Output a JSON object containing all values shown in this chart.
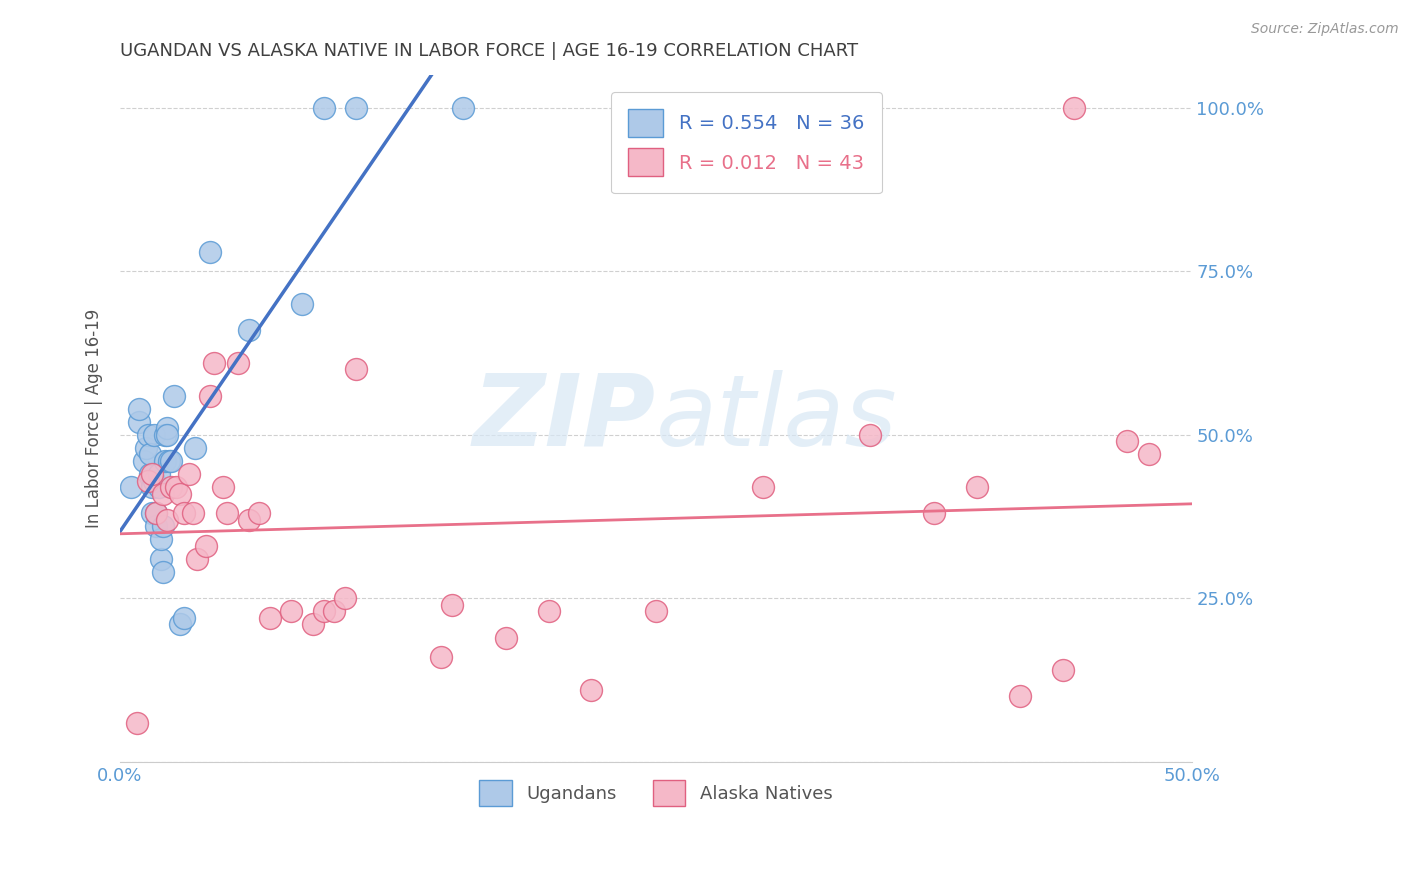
{
  "title": "UGANDAN VS ALASKA NATIVE IN LABOR FORCE | AGE 16-19 CORRELATION CHART",
  "source": "Source: ZipAtlas.com",
  "ylabel": "In Labor Force | Age 16-19",
  "xmin": 0.0,
  "xmax": 0.5,
  "ymin": 0.0,
  "ymax": 1.05,
  "yticks": [
    0.0,
    0.25,
    0.5,
    0.75,
    1.0
  ],
  "ytick_labels": [
    "",
    "25.0%",
    "50.0%",
    "75.0%",
    "100.0%"
  ],
  "xticks": [
    0.0,
    0.1,
    0.2,
    0.3,
    0.4,
    0.5
  ],
  "xtick_labels": [
    "0.0%",
    "",
    "",
    "",
    "",
    "50.0%"
  ],
  "legend_label1": "Ugandans",
  "legend_label2": "Alaska Natives",
  "watermark_zip": "ZIP",
  "watermark_atlas": "atlas",
  "blue_fill": "#aec9e8",
  "blue_edge": "#5b9bd5",
  "pink_fill": "#f5b8c8",
  "pink_edge": "#e06080",
  "blue_line": "#4472c4",
  "pink_line": "#e8708a",
  "axis_tick_color": "#5b9bd5",
  "title_color": "#404040",
  "grid_color": "#d0d0d0",
  "bg_color": "#ffffff",
  "ugandan_x": [
    0.005,
    0.009,
    0.009,
    0.011,
    0.012,
    0.013,
    0.014,
    0.014,
    0.015,
    0.015,
    0.016,
    0.016,
    0.017,
    0.017,
    0.018,
    0.018,
    0.019,
    0.019,
    0.02,
    0.02,
    0.021,
    0.021,
    0.022,
    0.022,
    0.023,
    0.024,
    0.025,
    0.028,
    0.03,
    0.035,
    0.042,
    0.06,
    0.085,
    0.095,
    0.11,
    0.16
  ],
  "ugandan_y": [
    0.42,
    0.52,
    0.54,
    0.46,
    0.48,
    0.5,
    0.44,
    0.47,
    0.38,
    0.42,
    0.43,
    0.5,
    0.36,
    0.38,
    0.42,
    0.44,
    0.31,
    0.34,
    0.29,
    0.36,
    0.46,
    0.5,
    0.51,
    0.5,
    0.46,
    0.46,
    0.56,
    0.21,
    0.22,
    0.48,
    0.78,
    0.66,
    0.7,
    1.0,
    1.0,
    1.0
  ],
  "alaska_x": [
    0.008,
    0.013,
    0.015,
    0.017,
    0.02,
    0.022,
    0.024,
    0.026,
    0.028,
    0.03,
    0.032,
    0.034,
    0.036,
    0.04,
    0.042,
    0.044,
    0.048,
    0.05,
    0.055,
    0.06,
    0.065,
    0.07,
    0.08,
    0.09,
    0.095,
    0.1,
    0.105,
    0.11,
    0.15,
    0.155,
    0.18,
    0.2,
    0.22,
    0.25,
    0.3,
    0.35,
    0.38,
    0.4,
    0.42,
    0.44,
    0.445,
    0.47,
    0.48
  ],
  "alaska_y": [
    0.06,
    0.43,
    0.44,
    0.38,
    0.41,
    0.37,
    0.42,
    0.42,
    0.41,
    0.38,
    0.44,
    0.38,
    0.31,
    0.33,
    0.56,
    0.61,
    0.42,
    0.38,
    0.61,
    0.37,
    0.38,
    0.22,
    0.23,
    0.21,
    0.23,
    0.23,
    0.25,
    0.6,
    0.16,
    0.24,
    0.19,
    0.23,
    0.11,
    0.23,
    0.42,
    0.5,
    0.38,
    0.42,
    0.1,
    0.14,
    1.0,
    0.49,
    0.47
  ],
  "blue_R": 0.554,
  "blue_N": 36,
  "pink_R": 0.012,
  "pink_N": 43
}
